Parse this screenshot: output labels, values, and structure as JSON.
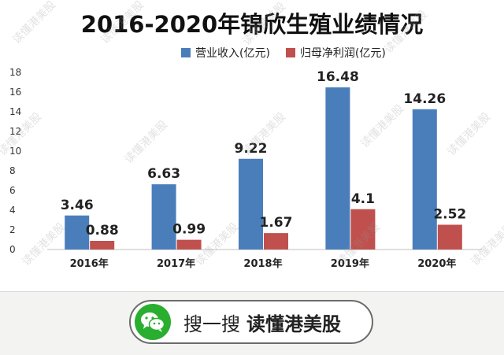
{
  "chart_data": {
    "type": "bar",
    "title": "2016-2020年锦欣生殖业绩情况",
    "categories": [
      "2016年",
      "2017年",
      "2018年",
      "2019年",
      "2020年"
    ],
    "series": [
      {
        "name": "营业收入(亿元)",
        "color": "#4a7ebb",
        "values": [
          3.46,
          6.63,
          9.22,
          16.48,
          14.26
        ]
      },
      {
        "name": "归母净利润(亿元)",
        "color": "#c0504d",
        "values": [
          0.88,
          0.99,
          1.67,
          4.1,
          2.52
        ]
      }
    ],
    "data_labels": [
      [
        "3.46",
        "6.63",
        "9.22",
        "16.48",
        "14.26"
      ],
      [
        "0.88",
        "0.99",
        "1.67",
        "4.1",
        "2.52"
      ]
    ],
    "ylim": [
      0,
      18
    ],
    "yticks": [
      0,
      2,
      4,
      6,
      8,
      10,
      12,
      14,
      16,
      18
    ],
    "xlabel": "",
    "ylabel": "",
    "legend_position": "top-center"
  },
  "footer": {
    "search_prefix": "搜一搜",
    "search_brand": "读懂港美股"
  },
  "watermark_text": "读懂港美股"
}
